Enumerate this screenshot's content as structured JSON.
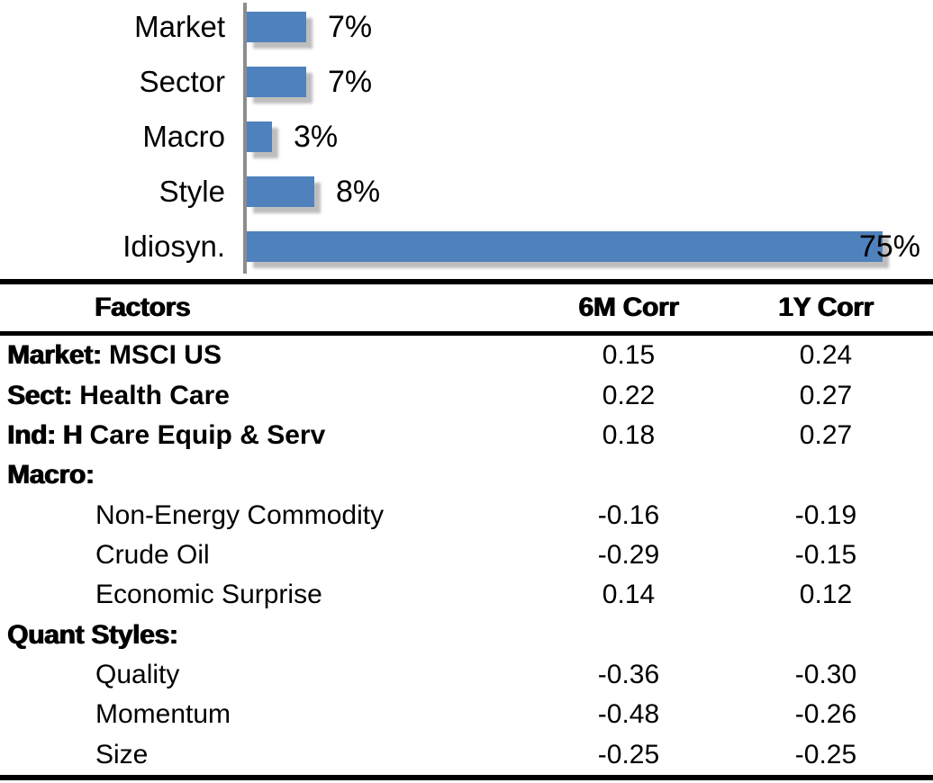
{
  "colors": {
    "bar_blue": "#4f81bd",
    "axis_gray": "#8c8c8c",
    "rule_black": "#000000"
  },
  "chart_data": [
    {
      "type": "bar",
      "orientation": "horizontal",
      "title": "",
      "categories": [
        "Market",
        "Sector",
        "Macro",
        "Style",
        "Idiosyn."
      ],
      "values": [
        7,
        7,
        3,
        8,
        75
      ],
      "value_labels": [
        "7%",
        "7%",
        "3%",
        "8%",
        "75%"
      ],
      "unit": "%",
      "xlim": [
        0,
        81
      ],
      "grid": false,
      "legend_position": "none",
      "bar_color": "#4f81bd"
    },
    {
      "type": "table",
      "headers": [
        "Factors",
        "6M Corr",
        "1Y Corr"
      ],
      "rows": [
        {
          "label_strong": "Market:",
          "label": " MSCI US",
          "indent": false,
          "corr_6m": "0.15",
          "corr_1y": "0.24"
        },
        {
          "label_strong": "Sect:",
          "label": " Health Care",
          "indent": false,
          "corr_6m": "0.22",
          "corr_1y": "0.27"
        },
        {
          "label_strong": "Ind: H",
          "label": " Care Equip & Serv",
          "indent": false,
          "corr_6m": "0.18",
          "corr_1y": "0.27"
        },
        {
          "label_strong": "Macro:",
          "label": "",
          "indent": false,
          "corr_6m": "",
          "corr_1y": ""
        },
        {
          "label_strong": "",
          "label": "Non-Energy Commodity",
          "indent": true,
          "corr_6m": "-0.16",
          "corr_1y": "-0.19"
        },
        {
          "label_strong": "",
          "label": "Crude Oil",
          "indent": true,
          "corr_6m": "-0.29",
          "corr_1y": "-0.15"
        },
        {
          "label_strong": "",
          "label": "Economic Surprise",
          "indent": true,
          "corr_6m": "0.14",
          "corr_1y": "0.12"
        },
        {
          "label_strong": "Quant Styles:",
          "label": "",
          "indent": false,
          "corr_6m": "",
          "corr_1y": ""
        },
        {
          "label_strong": "",
          "label": "Quality",
          "indent": true,
          "corr_6m": "-0.36",
          "corr_1y": "-0.30"
        },
        {
          "label_strong": "",
          "label": "Momentum",
          "indent": true,
          "corr_6m": "-0.48",
          "corr_1y": "-0.26"
        },
        {
          "label_strong": "",
          "label": "Size",
          "indent": true,
          "corr_6m": "-0.25",
          "corr_1y": "-0.25"
        }
      ]
    }
  ]
}
